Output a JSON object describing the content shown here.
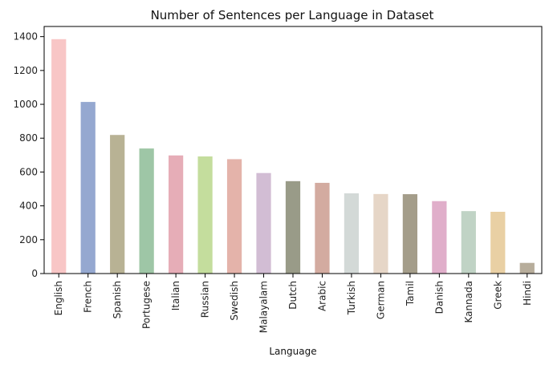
{
  "chart_data": {
    "type": "bar",
    "title": "Number of Sentences per Language in Dataset",
    "xlabel": "Language",
    "ylabel": "",
    "ylim": [
      0,
      1460
    ],
    "yticks": [
      0,
      200,
      400,
      600,
      800,
      1000,
      1200,
      1400
    ],
    "categories": [
      "English",
      "French",
      "Spanish",
      "Portugese",
      "Italian",
      "Russian",
      "Swedish",
      "Malayalam",
      "Dutch",
      "Arabic",
      "Turkish",
      "German",
      "Tamil",
      "Danish",
      "Kannada",
      "Greek",
      "Hindi"
    ],
    "values": [
      1385,
      1014,
      819,
      739,
      698,
      692,
      676,
      594,
      546,
      536,
      474,
      470,
      469,
      428,
      369,
      365,
      63
    ],
    "colors": [
      "#f8c6c6",
      "#95a8d0",
      "#b8b294",
      "#9ec6a6",
      "#e6adb7",
      "#c4dd9d",
      "#e4b3aa",
      "#d2bdd4",
      "#999b88",
      "#d3aba0",
      "#d3d9d7",
      "#e6d6c7",
      "#a49d8a",
      "#e0aeca",
      "#c0d3c5",
      "#e9d0a4",
      "#b7ad9b"
    ]
  }
}
